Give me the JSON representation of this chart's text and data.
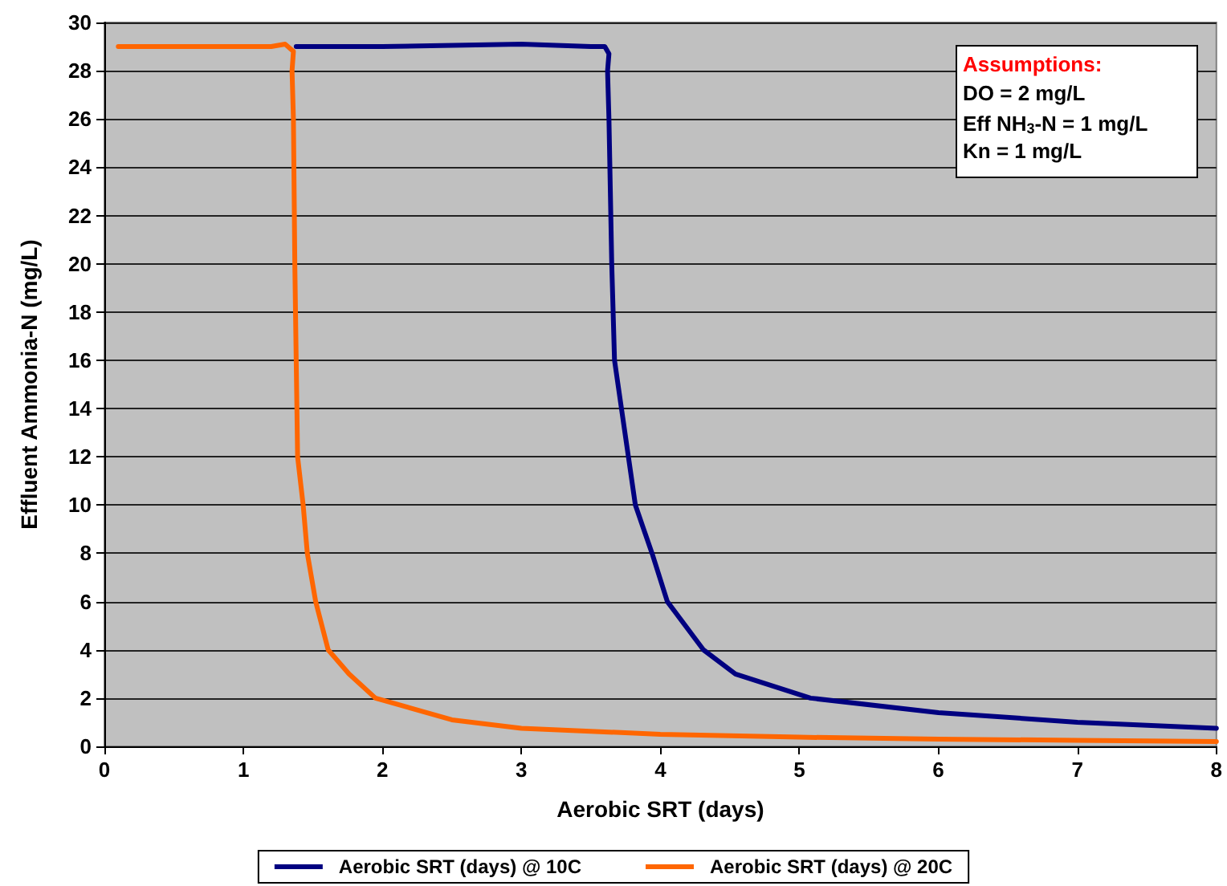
{
  "chart_data": {
    "type": "line",
    "xlabel": "Aerobic SRT (days)",
    "ylabel": "Effluent Ammonia-N (mg/L)",
    "xlim": [
      0,
      8
    ],
    "xticks": [
      0,
      1,
      2,
      3,
      4,
      5,
      6,
      7,
      8
    ],
    "ylim": [
      0,
      30
    ],
    "yticks": [
      0,
      2,
      4,
      6,
      8,
      10,
      12,
      14,
      16,
      18,
      20,
      22,
      24,
      26,
      28,
      30
    ],
    "grid": "y",
    "legend": "bottom",
    "marker": "none",
    "line_style": "solid",
    "annotations": [
      "Assumptions:",
      "DO = 2 mg/L",
      "Eff NH$_{3}$-N = 1 mg/L",
      "Kn = 1 mg/L"
    ],
    "series": [
      {
        "name": "Aerobic SRT (days) @ 10C",
        "color": "#000080",
        "x": [
          1.38,
          2,
          3,
          3.5,
          3.6,
          3.63,
          3.62,
          3.63,
          3.65,
          3.67,
          3.72,
          3.77,
          3.82,
          3.88,
          3.94,
          4.05,
          4.31,
          4.54,
          5.08,
          6,
          7,
          8
        ],
        "values": [
          29,
          29,
          29.1,
          29,
          29,
          28.7,
          28,
          26,
          20,
          16,
          14,
          12,
          10,
          9,
          8,
          6,
          4,
          3,
          2,
          1.4,
          1,
          0.75
        ]
      },
      {
        "name": "Aerobic SRT (days) @ 20C",
        "color": "#ff6600",
        "x": [
          0.1,
          0.5,
          1,
          1.2,
          1.3,
          1.36,
          1.35,
          1.36,
          1.37,
          1.38,
          1.39,
          1.43,
          1.46,
          1.52,
          1.61,
          1.76,
          1.95,
          2.5,
          3,
          4,
          5,
          6,
          7,
          8
        ],
        "values": [
          29,
          29,
          29,
          29,
          29.1,
          28.8,
          28,
          26,
          20,
          16,
          12,
          10,
          8,
          6,
          4,
          3,
          2,
          1.1,
          0.75,
          0.5,
          0.38,
          0.3,
          0.25,
          0.2
        ]
      }
    ]
  }
}
